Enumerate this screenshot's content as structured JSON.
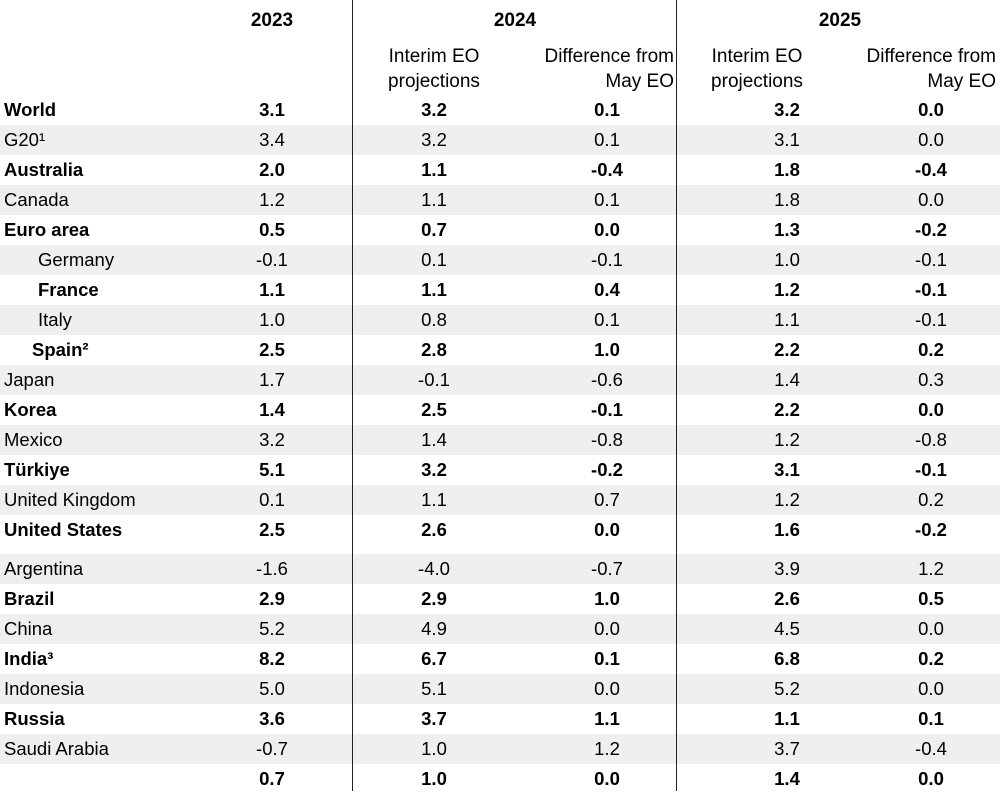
{
  "header": {
    "y2023": "2023",
    "y2024": "2024",
    "y2025": "2025",
    "interim_2024": "Interim EO\nprojections",
    "diff_2024": "Difference from\nMay EO",
    "interim_2025": "Interim EO\nprojections",
    "diff_2025": "Difference from\nMay EO"
  },
  "rows": [
    {
      "name": "World",
      "v": [
        "3.1",
        "3.2",
        "0.1",
        "3.2",
        "0.0"
      ],
      "bold": true,
      "shade": false,
      "indent": 0
    },
    {
      "name": "G20¹",
      "v": [
        "3.4",
        "3.2",
        "0.1",
        "3.1",
        "0.0"
      ],
      "bold": false,
      "shade": true,
      "indent": 0
    },
    {
      "name": "Australia",
      "v": [
        "2.0",
        "1.1",
        "-0.4",
        "1.8",
        "-0.4"
      ],
      "bold": true,
      "shade": false,
      "indent": 0
    },
    {
      "name": "Canada",
      "v": [
        "1.2",
        "1.1",
        "0.1",
        "1.8",
        "0.0"
      ],
      "bold": false,
      "shade": true,
      "indent": 0
    },
    {
      "name": "Euro area",
      "v": [
        "0.5",
        "0.7",
        "0.0",
        "1.3",
        "-0.2"
      ],
      "bold": true,
      "shade": false,
      "indent": 0
    },
    {
      "name": "Germany",
      "v": [
        "-0.1",
        "0.1",
        "-0.1",
        "1.0",
        "-0.1"
      ],
      "bold": false,
      "shade": true,
      "indent": 1
    },
    {
      "name": "France",
      "v": [
        "1.1",
        "1.1",
        "0.4",
        "1.2",
        "-0.1"
      ],
      "bold": true,
      "shade": false,
      "indent": 1
    },
    {
      "name": "Italy",
      "v": [
        "1.0",
        "0.8",
        "0.1",
        "1.1",
        "-0.1"
      ],
      "bold": false,
      "shade": true,
      "indent": 1
    },
    {
      "name": "Spain²",
      "v": [
        "2.5",
        "2.8",
        "1.0",
        "2.2",
        "0.2"
      ],
      "bold": true,
      "shade": false,
      "indent": 2
    },
    {
      "name": "Japan",
      "v": [
        "1.7",
        "-0.1",
        "-0.6",
        "1.4",
        "0.3"
      ],
      "bold": false,
      "shade": true,
      "indent": 0
    },
    {
      "name": "Korea",
      "v": [
        "1.4",
        "2.5",
        "-0.1",
        "2.2",
        "0.0"
      ],
      "bold": true,
      "shade": false,
      "indent": 0
    },
    {
      "name": "Mexico",
      "v": [
        "3.2",
        "1.4",
        "-0.8",
        "1.2",
        "-0.8"
      ],
      "bold": false,
      "shade": true,
      "indent": 0
    },
    {
      "name": "Türkiye",
      "v": [
        "5.1",
        "3.2",
        "-0.2",
        "3.1",
        "-0.1"
      ],
      "bold": true,
      "shade": false,
      "indent": 0
    },
    {
      "name": "United Kingdom",
      "v": [
        "0.1",
        "1.1",
        "0.7",
        "1.2",
        "0.2"
      ],
      "bold": false,
      "shade": true,
      "indent": 0
    },
    {
      "name": "United States",
      "v": [
        "2.5",
        "2.6",
        "0.0",
        "1.6",
        "-0.2"
      ],
      "bold": true,
      "shade": false,
      "indent": 0
    },
    {
      "name": "Argentina",
      "v": [
        "-1.6",
        "-4.0",
        "-0.7",
        "3.9",
        "1.2"
      ],
      "bold": false,
      "shade": true,
      "indent": 0
    },
    {
      "name": "Brazil",
      "v": [
        "2.9",
        "2.9",
        "1.0",
        "2.6",
        "0.5"
      ],
      "bold": true,
      "shade": false,
      "indent": 0
    },
    {
      "name": "China",
      "v": [
        "5.2",
        "4.9",
        "0.0",
        "4.5",
        "0.0"
      ],
      "bold": false,
      "shade": true,
      "indent": 0
    },
    {
      "name": "India³",
      "v": [
        "8.2",
        "6.7",
        "0.1",
        "6.8",
        "0.2"
      ],
      "bold": true,
      "shade": false,
      "indent": 0
    },
    {
      "name": "Indonesia",
      "v": [
        "5.0",
        "5.1",
        "0.0",
        "5.2",
        "0.0"
      ],
      "bold": false,
      "shade": true,
      "indent": 0
    },
    {
      "name": "Russia",
      "v": [
        "3.6",
        "3.7",
        "1.1",
        "1.1",
        "0.1"
      ],
      "bold": true,
      "shade": false,
      "indent": 0
    },
    {
      "name": "Saudi Arabia",
      "v": [
        "-0.7",
        "1.0",
        "1.2",
        "3.7",
        "-0.4"
      ],
      "bold": false,
      "shade": true,
      "indent": 0
    },
    {
      "name": "",
      "v": [
        "0.7",
        "1.0",
        "0.0",
        "1.4",
        "0.0"
      ],
      "bold": true,
      "shade": false,
      "indent": 0
    }
  ]
}
